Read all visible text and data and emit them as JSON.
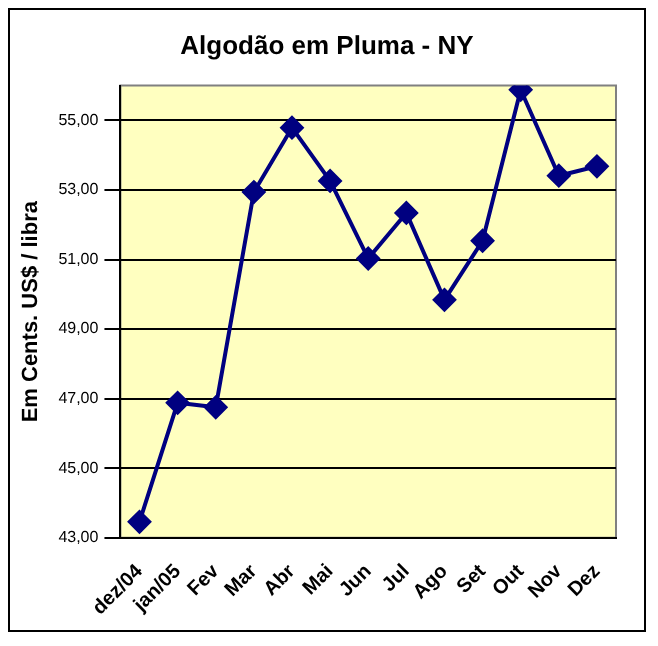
{
  "chart_data": {
    "type": "line",
    "title": "Algodão em Pluma - NY",
    "ylabel": "Em Cents. US$ / libra",
    "categories": [
      "dez/04",
      "jan/05",
      "Fev",
      "Mar",
      "Abr",
      "Mai",
      "Jun",
      "Jul",
      "Ago",
      "Set",
      "Out",
      "Nov",
      "Dez"
    ],
    "series": [
      {
        "color": "#000080",
        "values": [
          43.46,
          46.88,
          46.75,
          52.94,
          54.79,
          53.26,
          51.03,
          52.34,
          49.84,
          51.54,
          55.88,
          53.41,
          53.68
        ]
      }
    ],
    "ylim": [
      43,
      56
    ],
    "yticks": [
      {
        "value": 43,
        "label": "43,00"
      },
      {
        "value": 45,
        "label": "45,00"
      },
      {
        "value": 47,
        "label": "47,00"
      },
      {
        "value": 49,
        "label": "49,00"
      },
      {
        "value": 51,
        "label": "51,00"
      },
      {
        "value": 53,
        "label": "53,00"
      },
      {
        "value": 55,
        "label": "55,00"
      }
    ],
    "grid": "y",
    "legend": false,
    "marker": "diamond",
    "line_style": "solid"
  }
}
